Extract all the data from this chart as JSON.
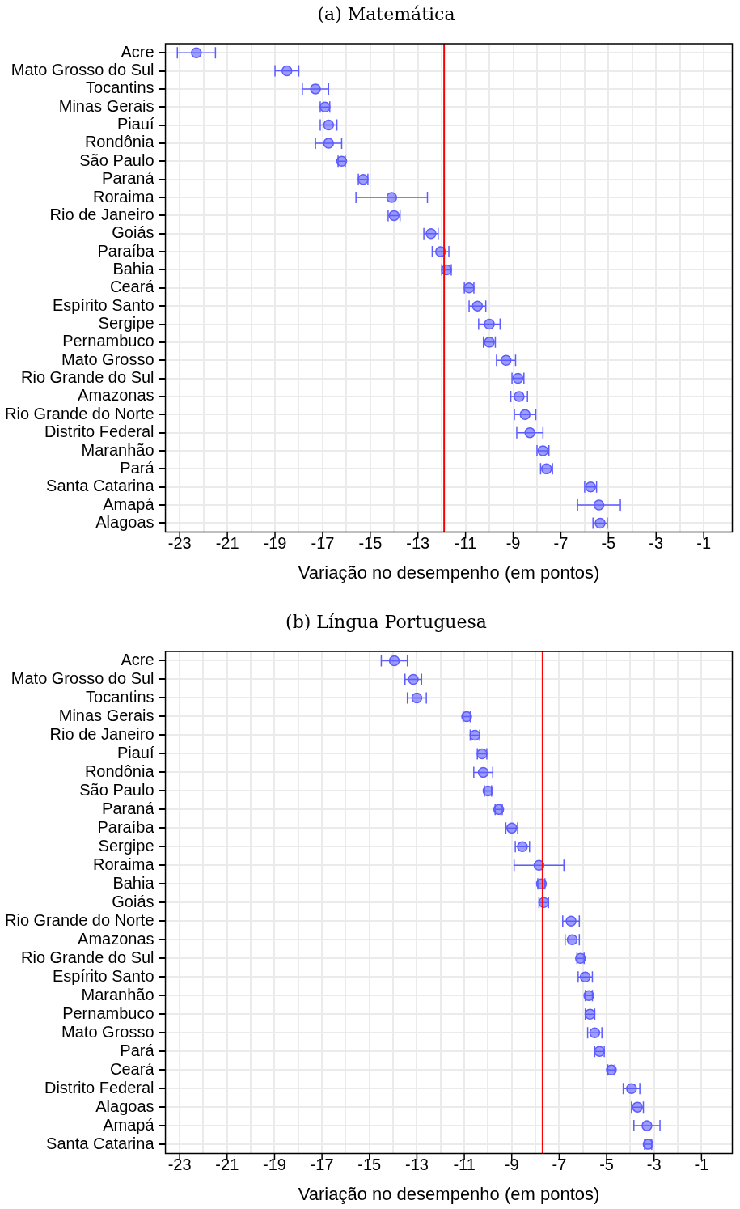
{
  "chart_data": [
    {
      "type": "scatter",
      "title": "(a) Matemática",
      "xlabel": "Variação no desempenho (em pontos)",
      "orientation": "horizontal",
      "categories": [
        "Acre",
        "Mato Grosso do Sul",
        "Tocantins",
        "Minas Gerais",
        "Piauí",
        "Rondônia",
        "São Paulo",
        "Paraná",
        "Roraima",
        "Rio de Janeiro",
        "Goiás",
        "Paraíba",
        "Bahia",
        "Ceará",
        "Espírito Santo",
        "Sergipe",
        "Pernambuco",
        "Mato Grosso",
        "Rio Grande do Sul",
        "Amazonas",
        "Rio Grande do Norte",
        "Distrito Federal",
        "Maranhão",
        "Pará",
        "Santa Catarina",
        "Amapá",
        "Alagoas"
      ],
      "values": [
        -22.3,
        -18.5,
        -17.3,
        -16.9,
        -16.75,
        -16.75,
        -16.2,
        -15.3,
        -14.1,
        -14.0,
        -12.45,
        -12.05,
        -11.8,
        -10.85,
        -10.5,
        -10.0,
        -10.0,
        -9.3,
        -8.8,
        -8.75,
        -8.5,
        -8.3,
        -7.75,
        -7.6,
        -5.75,
        -5.4,
        -5.35
      ],
      "errors": [
        0.8,
        0.5,
        0.55,
        0.2,
        0.35,
        0.55,
        0.15,
        0.2,
        1.5,
        0.25,
        0.3,
        0.35,
        0.2,
        0.2,
        0.35,
        0.45,
        0.25,
        0.4,
        0.25,
        0.35,
        0.45,
        0.55,
        0.25,
        0.25,
        0.25,
        0.9,
        0.3
      ],
      "color": "#5c5cff",
      "marker": "circle",
      "grid": true,
      "xlim": [
        -23.6,
        0.2
      ],
      "xticks": [
        -23,
        {
          "value": -22,
          "label": null
        },
        -21,
        {
          "value": -20,
          "label": null
        },
        -19,
        {
          "value": -18,
          "label": null
        },
        -17,
        {
          "value": -16,
          "label": null
        },
        -15,
        {
          "value": -14,
          "label": null
        },
        -13,
        {
          "value": -12,
          "label": null
        },
        -11,
        {
          "value": -10,
          "label": null
        },
        -9,
        {
          "value": -8,
          "label": null
        },
        -7,
        {
          "value": -6,
          "label": null
        },
        -5,
        {
          "value": -4,
          "label": null
        },
        -3,
        {
          "value": -2,
          "label": null
        },
        -1
      ],
      "ref_lines": [
        {
          "axis": "x",
          "value": -11.9,
          "color": "#ff0000"
        }
      ]
    },
    {
      "type": "scatter",
      "title": "(b) Língua Portuguesa",
      "xlabel": "Variação no desempenho (em pontos)",
      "orientation": "horizontal",
      "categories": [
        "Acre",
        "Mato Grosso do Sul",
        "Tocantins",
        "Minas Gerais",
        "Rio de Janeiro",
        "Piauí",
        "Rondônia",
        "São Paulo",
        "Paraná",
        "Paraíba",
        "Sergipe",
        "Roraima",
        "Bahia",
        "Goiás",
        "Rio Grande do Norte",
        "Amazonas",
        "Rio Grande do Sul",
        "Espírito Santo",
        "Maranhão",
        "Pernambuco",
        "Mato Grosso",
        "Pará",
        "Ceará",
        "Distrito Federal",
        "Alagoas",
        "Amapá",
        "Santa Catarina"
      ],
      "values": [
        -13.95,
        -13.15,
        -13.0,
        -10.9,
        -10.55,
        -10.25,
        -10.2,
        -10.0,
        -9.55,
        -9.0,
        -8.55,
        -7.85,
        -7.75,
        -7.65,
        -6.5,
        -6.45,
        -6.1,
        -5.9,
        -5.75,
        -5.7,
        -5.5,
        -5.3,
        -4.8,
        -3.95,
        -3.7,
        -3.3,
        -3.25
      ],
      "errors": [
        0.55,
        0.35,
        0.4,
        0.15,
        0.2,
        0.2,
        0.4,
        0.15,
        0.15,
        0.25,
        0.3,
        1.05,
        0.15,
        0.2,
        0.35,
        0.3,
        0.15,
        0.3,
        0.15,
        0.2,
        0.3,
        0.2,
        0.15,
        0.35,
        0.25,
        0.55,
        0.15
      ],
      "color": "#5c5cff",
      "marker": "circle",
      "grid": true,
      "xlim": [
        -23.6,
        0.3
      ],
      "xticks": [
        -23,
        {
          "value": -22,
          "label": null
        },
        -21,
        {
          "value": -20,
          "label": null
        },
        -19,
        {
          "value": -18,
          "label": null
        },
        -17,
        {
          "value": -16,
          "label": null
        },
        -15,
        {
          "value": -14,
          "label": null
        },
        -13,
        {
          "value": -12,
          "label": null
        },
        -11,
        {
          "value": -10,
          "label": null
        },
        -9,
        {
          "value": -8,
          "label": null
        },
        -7,
        {
          "value": -6,
          "label": null
        },
        -5,
        {
          "value": -4,
          "label": null
        },
        -3,
        {
          "value": -2,
          "label": null
        },
        -1
      ],
      "ref_lines": [
        {
          "axis": "x",
          "value": -7.7,
          "color": "#ff0000"
        }
      ]
    }
  ]
}
